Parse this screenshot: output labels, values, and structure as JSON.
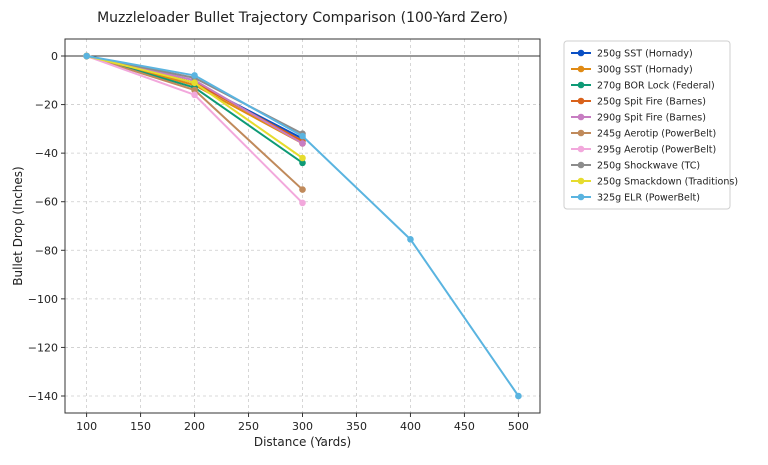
{
  "chart_data": {
    "type": "line",
    "title": "Muzzleloader Bullet Trajectory Comparison (100-Yard Zero)",
    "xlabel": "Distance (Yards)",
    "ylabel": "Bullet Drop (Inches)",
    "xlim": [
      80,
      520
    ],
    "ylim": [
      -147,
      7
    ],
    "xticks": [
      100,
      150,
      200,
      250,
      300,
      350,
      400,
      450,
      500
    ],
    "yticks": [
      0,
      -20,
      -40,
      -60,
      -80,
      -100,
      -120,
      -140
    ],
    "grid": true,
    "zero_line": 0,
    "legend_position": "outside-right-top",
    "series": [
      {
        "name": "250g SST (Hornady)",
        "color": "#0a4fc4",
        "x": [
          100,
          200,
          300
        ],
        "y": [
          0,
          -11,
          -34
        ]
      },
      {
        "name": "300g SST (Hornady)",
        "color": "#e08a14",
        "x": [
          100,
          200,
          300
        ],
        "y": [
          0,
          -12,
          -36
        ]
      },
      {
        "name": "270g BOR Lock (Federal)",
        "color": "#0e9a76",
        "x": [
          100,
          200,
          300
        ],
        "y": [
          0,
          -13,
          -44
        ]
      },
      {
        "name": "250g Spit Fire (Barnes)",
        "color": "#d9621b",
        "x": [
          100,
          200,
          300
        ],
        "y": [
          0,
          -11,
          -35
        ]
      },
      {
        "name": "290g Spit Fire (Barnes)",
        "color": "#c77dc2",
        "x": [
          100,
          200,
          300
        ],
        "y": [
          0,
          -10,
          -36
        ]
      },
      {
        "name": "245g Aerotip (PowerBelt)",
        "color": "#c08a5b",
        "x": [
          100,
          200,
          300
        ],
        "y": [
          0,
          -14,
          -55
        ]
      },
      {
        "name": "295g Aerotip (PowerBelt)",
        "color": "#f2a8dc",
        "x": [
          100,
          200,
          300
        ],
        "y": [
          0,
          -16,
          -60.5
        ]
      },
      {
        "name": "250g Shockwave (TC)",
        "color": "#8c8c8c",
        "x": [
          100,
          200,
          300
        ],
        "y": [
          0,
          -9,
          -32
        ]
      },
      {
        "name": "250g Smackdown (Traditions)",
        "color": "#e6dc2e",
        "x": [
          100,
          200,
          300
        ],
        "y": [
          0,
          -11,
          -42
        ]
      },
      {
        "name": "325g ELR (PowerBelt)",
        "color": "#5ab4e0",
        "x": [
          100,
          200,
          300,
          400,
          500
        ],
        "y": [
          0,
          -8,
          -33,
          -75.5,
          -140
        ]
      }
    ]
  }
}
